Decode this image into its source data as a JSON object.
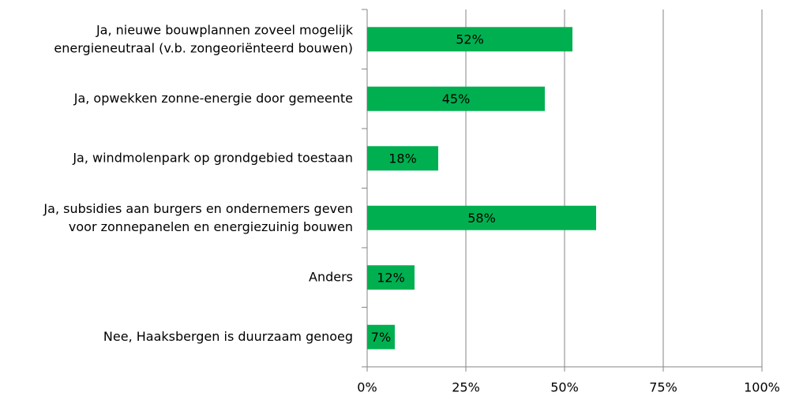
{
  "chart_data": {
    "type": "hbar",
    "categories": [
      "Ja, nieuwe bouwplannen zoveel mogelijk\nenergieneutraal (v.b. zongeoriënteerd bouwen)",
      "Ja, opwekken zonne-energie door gemeente",
      "Ja, windmolenpark op grondgebied toestaan",
      "Ja, subsidies aan burgers en ondernemers geven\nvoor zonnepanelen en energiezuinig bouwen",
      "Anders",
      "Nee, Haaksbergen is duurzaam genoeg"
    ],
    "values": [
      52,
      45,
      18,
      58,
      12,
      7
    ],
    "value_labels": [
      "52%",
      "45%",
      "18%",
      "58%",
      "12%",
      "7%"
    ],
    "color": "#00b050",
    "xlim": [
      0,
      100
    ],
    "xticks": [
      {
        "value": 0,
        "label": "0%"
      },
      {
        "value": 25,
        "label": "25%"
      },
      {
        "value": 50,
        "label": "50%"
      },
      {
        "value": 75,
        "label": "75%"
      },
      {
        "value": 100,
        "label": "100%"
      }
    ],
    "grid": true
  }
}
